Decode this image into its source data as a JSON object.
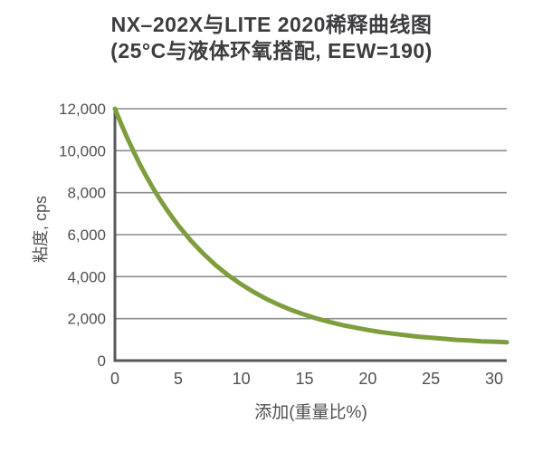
{
  "chart_data": {
    "type": "line",
    "title": "NX–202X与LITE 2020稀释曲线图",
    "subtitle": "(25°C与液体环氧搭配, EEW=190)",
    "xlabel": "添加(重量比%)",
    "ylabel": "粘度, cps",
    "xlim": [
      0,
      31
    ],
    "ylim": [
      0,
      12000
    ],
    "x_ticks": [
      0,
      5,
      10,
      15,
      20,
      25,
      30
    ],
    "y_ticks": [
      0,
      2000,
      4000,
      6000,
      8000,
      10000,
      12000
    ],
    "y_tick_format": "thousands-comma",
    "grid": "horizontal-only",
    "legend_position": "none",
    "series": [
      {
        "color": "#7e9e3e",
        "stroke_width": 5,
        "x": [
          0,
          0.5,
          1,
          1.5,
          2,
          2.5,
          3,
          3.5,
          4,
          4.5,
          5,
          6,
          7,
          8,
          9,
          10,
          11,
          12,
          13,
          14,
          15,
          16,
          17,
          18,
          19,
          20,
          21,
          22,
          23,
          24,
          25,
          26,
          27,
          28,
          29,
          30,
          31
        ],
        "y": [
          12000,
          11260,
          10570,
          9930,
          9320,
          8760,
          8230,
          7740,
          7280,
          6850,
          6450,
          5720,
          5090,
          4530,
          4050,
          3630,
          3260,
          2930,
          2650,
          2400,
          2190,
          2000,
          1840,
          1690,
          1570,
          1460,
          1360,
          1280,
          1210,
          1140,
          1090,
          1040,
          990,
          960,
          920,
          900,
          870
        ]
      }
    ],
    "colors": {
      "axis": "#58595b",
      "gridline": "#8a8c8f",
      "tick_text": "#4f5052",
      "title_text": "#3d3d3f",
      "background": "#ffffff"
    }
  }
}
